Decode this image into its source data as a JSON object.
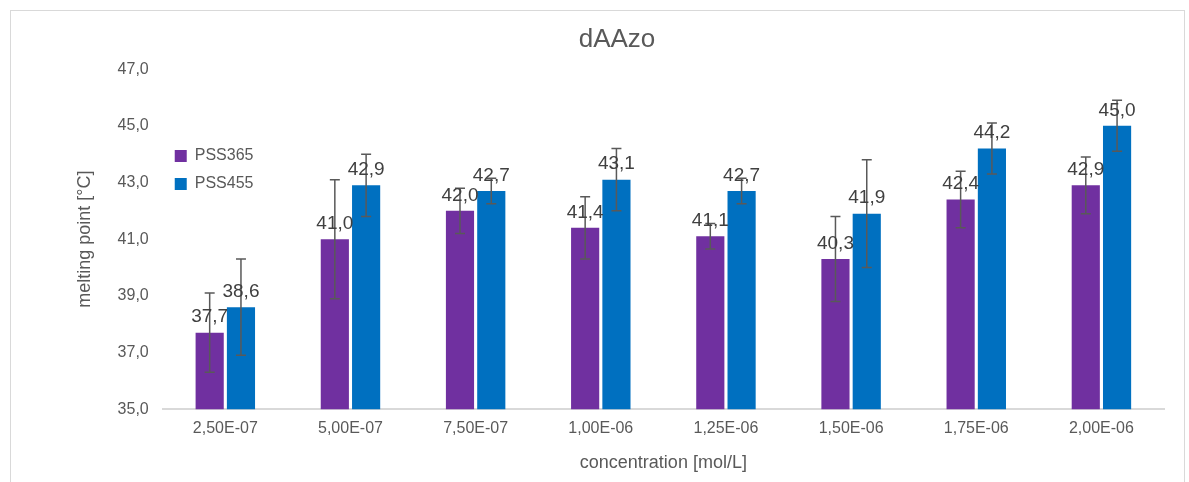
{
  "chart_data": {
    "type": "bar",
    "title": "dAAzo",
    "xlabel": "concentration [mol/L]",
    "ylabel": "melting point [°C]",
    "categories": [
      "2,50E-07",
      "5,00E-07",
      "7,50E-07",
      "1,00E-06",
      "1,25E-06",
      "1,50E-06",
      "1,75E-06",
      "2,00E-06"
    ],
    "series": [
      {
        "name": "PSS365",
        "color": "#7030a0",
        "values": [
          37.7,
          41.0,
          42.0,
          41.4,
          41.1,
          40.3,
          42.4,
          42.9
        ],
        "value_labels": [
          "37,7",
          "41,0",
          "42,0",
          "41,4",
          "41,1",
          "40,3",
          "42,4",
          "42,9"
        ],
        "errors": [
          1.4,
          2.1,
          0.8,
          1.1,
          0.45,
          1.5,
          1.0,
          1.0
        ]
      },
      {
        "name": "PSS455",
        "color": "#0070c0",
        "values": [
          38.6,
          42.9,
          42.7,
          43.1,
          42.7,
          41.9,
          44.2,
          45.0
        ],
        "value_labels": [
          "38,6",
          "42,9",
          "42,7",
          "43,1",
          "42,7",
          "41,9",
          "44,2",
          "45,0"
        ],
        "errors": [
          1.7,
          1.1,
          0.45,
          1.1,
          0.45,
          1.9,
          0.9,
          0.9
        ]
      }
    ],
    "ylim": [
      35,
      47
    ],
    "yticks": [
      {
        "value": 35,
        "label": "35,0"
      },
      {
        "value": 37,
        "label": "37,0"
      },
      {
        "value": 39,
        "label": "39,0"
      },
      {
        "value": 41,
        "label": "41,0"
      },
      {
        "value": 43,
        "label": "43,0"
      },
      {
        "value": 45,
        "label": "45,0"
      },
      {
        "value": 47,
        "label": "47,0"
      }
    ],
    "grid": false,
    "legend": "top"
  }
}
